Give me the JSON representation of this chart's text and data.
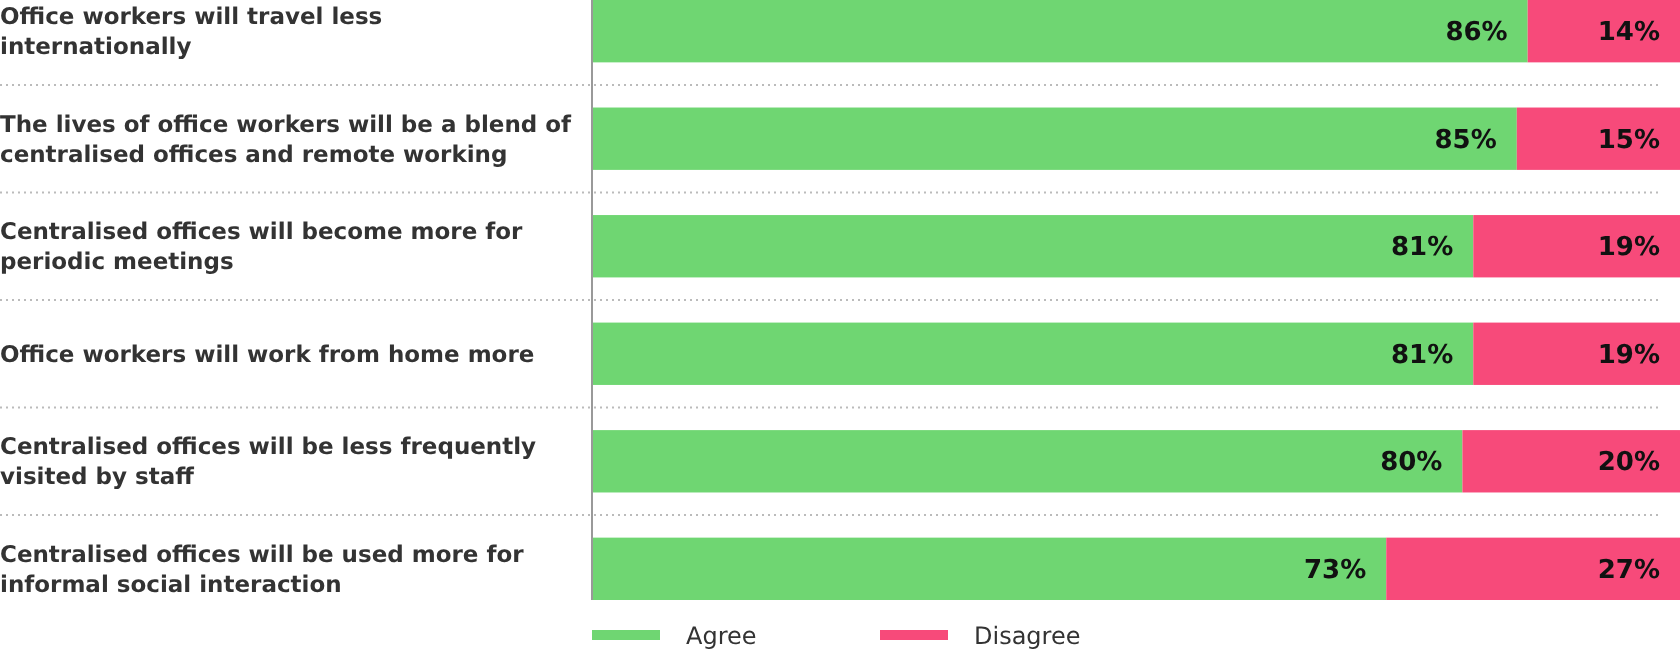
{
  "chart_data": {
    "type": "bar",
    "orientation": "horizontal",
    "stacked": true,
    "categories": [
      "Office workers will travel less internationally",
      "The lives of office workers will be a blend of centralised offices and remote working",
      "Centralised offices will become more for periodic meetings",
      "Office workers will work from home more",
      "Centralised offices will be less frequently visited by staff",
      "Centralised offices will be used more for informal social interaction"
    ],
    "series": [
      {
        "name": "Agree",
        "color": "#6fd672",
        "values": [
          86,
          85,
          81,
          81,
          80,
          73
        ],
        "value_labels": [
          "86%",
          "85%",
          "81%",
          "81%",
          "80%",
          "73%"
        ]
      },
      {
        "name": "Disagree",
        "color": "#f74a7a",
        "values": [
          14,
          15,
          19,
          19,
          20,
          27
        ],
        "value_labels": [
          "14%",
          "15%",
          "19%",
          "19%",
          "20%",
          "27%"
        ]
      }
    ],
    "xlim": [
      0,
      100
    ],
    "tick_labels": "y",
    "legend": "bottom"
  }
}
